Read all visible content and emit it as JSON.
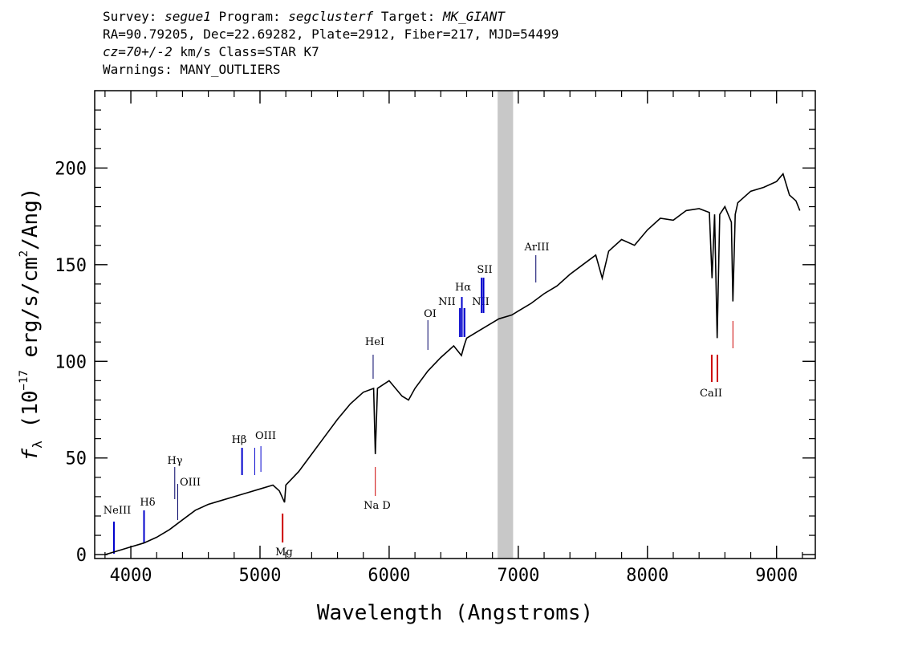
{
  "header": {
    "l1_survey_key": "Survey:",
    "l1_survey_val": "segue1",
    "l1_program_key": "Program:",
    "l1_program_val": "segclusterf",
    "l1_target_key": "Target:",
    "l1_target_val": "MK_GIANT",
    "line2": "RA=90.79205, Dec=22.69282, Plate=2912, Fiber=217, MJD=54499",
    "l3_cz": "cz=70+/-2",
    "l3_rest": " km/s Class=STAR K7",
    "line4": "Warnings: MANY_OUTLIERS"
  },
  "chart_data": {
    "type": "line",
    "xlabel": "Wavelength (Angstroms)",
    "ylabel_prefix": "f",
    "ylabel_sub": "λ",
    "ylabel_rest": " (10",
    "ylabel_exp": "−17",
    "ylabel_tail": " erg/s/cm",
    "ylabel_exp2": "2",
    "ylabel_end": "/Ang)",
    "xlim": [
      3720,
      9300
    ],
    "ylim": [
      -2,
      240
    ],
    "xticks": [
      4000,
      5000,
      6000,
      7000,
      8000,
      9000
    ],
    "yticks": [
      0,
      50,
      100,
      150,
      200
    ],
    "grid": false,
    "masked_band": [
      6840,
      6960
    ],
    "series": [
      {
        "color": "#000000",
        "x": [
          3800,
          3900,
          4000,
          4100,
          4200,
          4300,
          4400,
          4500,
          4600,
          4700,
          4800,
          4900,
          5000,
          5100,
          5150,
          5190,
          5200,
          5300,
          5400,
          5500,
          5600,
          5700,
          5800,
          5880,
          5893,
          5910,
          6000,
          6100,
          6150,
          6200,
          6300,
          6400,
          6500,
          6560,
          6580,
          6600,
          6700,
          6800,
          6850,
          6950,
          7000,
          7100,
          7200,
          7300,
          7400,
          7500,
          7600,
          7650,
          7700,
          7800,
          7900,
          8000,
          8100,
          8200,
          8300,
          8400,
          8480,
          8500,
          8520,
          8540,
          8560,
          8600,
          8650,
          8662,
          8680,
          8700,
          8800,
          8900,
          9000,
          9050,
          9100,
          9150,
          9180
        ],
        "y": [
          0,
          2,
          4,
          6,
          9,
          13,
          18,
          23,
          26,
          28,
          30,
          32,
          34,
          36,
          33,
          27,
          36,
          43,
          52,
          61,
          70,
          78,
          84,
          86,
          52,
          86,
          90,
          82,
          80,
          86,
          95,
          102,
          108,
          103,
          108,
          112,
          116,
          120,
          122,
          124,
          126,
          130,
          135,
          139,
          145,
          150,
          155,
          143,
          157,
          163,
          160,
          168,
          174,
          173,
          178,
          179,
          177,
          143,
          176,
          112,
          176,
          180,
          172,
          131,
          176,
          182,
          188,
          190,
          193,
          197,
          186,
          183,
          178
        ]
      }
    ],
    "emission_lines": [
      {
        "name": "NeIII",
        "x": 3869
      },
      {
        "name": "Hδ",
        "x": 4102
      },
      {
        "name": "Hγ",
        "x": 4340
      },
      {
        "name": "OIII",
        "x": 4363
      },
      {
        "name": "Hβ",
        "x": 4861
      },
      {
        "name": "OIII",
        "x": 4959
      },
      {
        "name": "HeI",
        "x": 5876
      },
      {
        "name": "OI",
        "x": 6300
      },
      {
        "name": "NII",
        "x": 6548
      },
      {
        "name": "Hα",
        "x": 6563
      },
      {
        "name": "NII",
        "x": 6583
      },
      {
        "name": "SII",
        "x": 6716
      },
      {
        "name": "ArIII",
        "x": 7136
      }
    ],
    "absorption_lines": [
      {
        "name": "Mg",
        "x": 5175
      },
      {
        "name": "Na D",
        "x": 5893
      },
      {
        "name": "CaII",
        "x": 8498
      },
      {
        "name": "CaII",
        "x": 8542
      },
      {
        "name": "CaII",
        "x": 8662
      }
    ]
  }
}
